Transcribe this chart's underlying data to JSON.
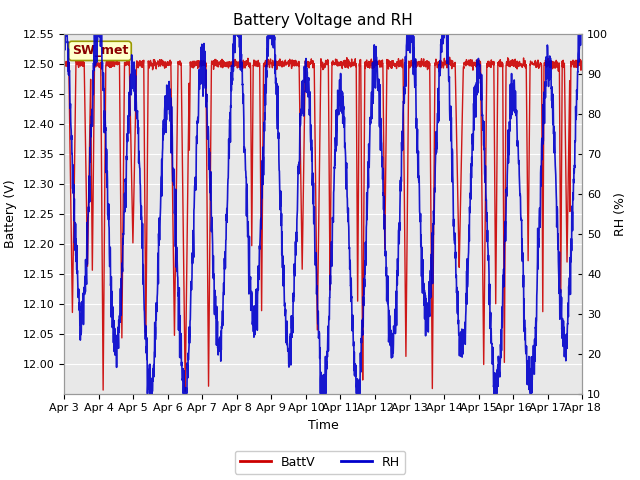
{
  "title": "Battery Voltage and RH",
  "xlabel": "Time",
  "ylabel_left": "Battery (V)",
  "ylabel_right": "RH (%)",
  "ylim_left": [
    11.95,
    12.55
  ],
  "ylim_right": [
    10,
    100
  ],
  "yticks_left": [
    12.0,
    12.05,
    12.1,
    12.15,
    12.2,
    12.25,
    12.3,
    12.35,
    12.4,
    12.45,
    12.5,
    12.55
  ],
  "yticks_right": [
    10,
    20,
    30,
    40,
    50,
    60,
    70,
    80,
    90,
    100
  ],
  "xtick_labels": [
    "Apr 3",
    "Apr 4",
    "Apr 5",
    "Apr 6",
    "Apr 7",
    "Apr 8",
    "Apr 9",
    "Apr 10",
    "Apr 11",
    "Apr 12",
    "Apr 13",
    "Apr 14",
    "Apr 15",
    "Apr 16",
    "Apr 17",
    "Apr 18"
  ],
  "batt_color": "#cc0000",
  "rh_color": "#0000cc",
  "legend_label_batt": "BattV",
  "legend_label_rh": "RH",
  "annotation_text": "SW_met",
  "annotation_bg": "#ffffcc",
  "annotation_border": "#999900",
  "fig_bg": "#ffffff",
  "plot_bg": "#e8e8e8",
  "grid_color": "#ffffff",
  "title_fontsize": 11,
  "axis_fontsize": 9,
  "tick_fontsize": 8,
  "legend_fontsize": 9,
  "linewidth_batt": 1.0,
  "linewidth_rh": 1.2
}
